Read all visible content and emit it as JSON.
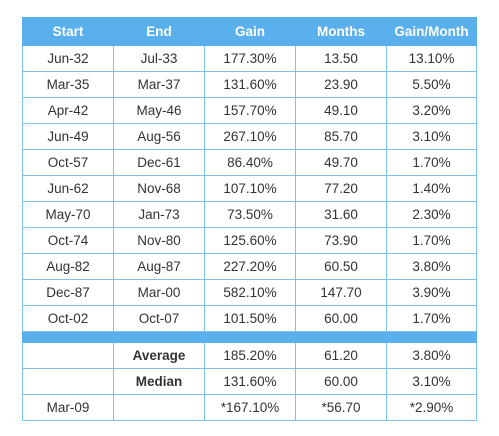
{
  "chart_data": {
    "type": "table",
    "columns": [
      "Start",
      "End",
      "Gain",
      "Months",
      "Gain/Month"
    ],
    "rows": [
      [
        "Jun-32",
        "Jul-33",
        "177.30%",
        "13.50",
        "13.10%"
      ],
      [
        "Mar-35",
        "Mar-37",
        "131.60%",
        "23.90",
        "5.50%"
      ],
      [
        "Apr-42",
        "May-46",
        "157.70%",
        "49.10",
        "3.20%"
      ],
      [
        "Jun-49",
        "Aug-56",
        "267.10%",
        "85.70",
        "3.10%"
      ],
      [
        "Oct-57",
        "Dec-61",
        "86.40%",
        "49.70",
        "1.70%"
      ],
      [
        "Jun-62",
        "Nov-68",
        "107.10%",
        "77.20",
        "1.40%"
      ],
      [
        "May-70",
        "Jan-73",
        "73.50%",
        "31.60",
        "2.30%"
      ],
      [
        "Oct-74",
        "Nov-80",
        "125.60%",
        "73.90",
        "1.70%"
      ],
      [
        "Aug-82",
        "Aug-87",
        "227.20%",
        "60.50",
        "3.80%"
      ],
      [
        "Dec-87",
        "Mar-00",
        "582.10%",
        "147.70",
        "3.90%"
      ],
      [
        "Oct-02",
        "Oct-07",
        "101.50%",
        "60.00",
        "1.70%"
      ]
    ],
    "summary_rows": [
      [
        "",
        "Average",
        "185.20%",
        "61.20",
        "3.80%"
      ],
      [
        "",
        "Median",
        "131.60%",
        "60.00",
        "3.10%"
      ],
      [
        "Mar-09",
        "",
        "*167.10%",
        "*56.70",
        "*2.90%"
      ]
    ],
    "colors": {
      "header_background": "#5ab0ec",
      "header_text": "#ffffff",
      "grid_line": "#7fc1ee",
      "body_text": "#333333"
    }
  }
}
